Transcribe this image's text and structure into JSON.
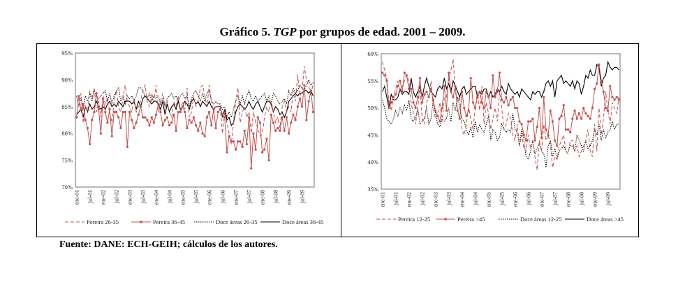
{
  "title": {
    "prefix": "Gráfico 5.",
    "italic": "TGP",
    "suffix": "por grupos de edad. 2001 – 2009."
  },
  "source": "Fuente: DANE: ECH-GEIH; cálculos de los autores.",
  "chart_data": [
    {
      "type": "line",
      "title": "",
      "xlabel": "",
      "ylabel": "",
      "ylim": [
        70,
        95
      ],
      "yticks": [
        "70%",
        "75%",
        "80%",
        "85%",
        "90%",
        "95%"
      ],
      "ytick_values": [
        70,
        75,
        80,
        85,
        90,
        95
      ],
      "xticks": [
        "ene-01",
        "jul-01",
        "ene-02",
        "jul-02",
        "ene-03",
        "jul-03",
        "ene-04",
        "jul-04",
        "ene-05",
        "jul-05",
        "ene-06",
        "jul-06",
        "ene-07",
        "jul-07",
        "ene-08",
        "jul-08",
        "ene-09",
        "jul-09"
      ],
      "x_period": "monthly 2001-01 to 2009-12",
      "legend_position": "bottom",
      "series": [
        {
          "name": "Pereira 26-35",
          "color": "#c0504d",
          "style": "dashed",
          "values": [
            87,
            85,
            87.5,
            82,
            85,
            84,
            88,
            86.5,
            88.5,
            84,
            86,
            83,
            87,
            85.5,
            86.5,
            84,
            82,
            86,
            88,
            85,
            84,
            86.5,
            89,
            86,
            85,
            84,
            86.5,
            84,
            85,
            86,
            88,
            89,
            86,
            85,
            87.5,
            86,
            89,
            84,
            86,
            87.5,
            85,
            86,
            84,
            83,
            86,
            85,
            87,
            84,
            86,
            84.5,
            88.5,
            83,
            84,
            87,
            85,
            86,
            88.5,
            89,
            87,
            85,
            89,
            86,
            84,
            85,
            85,
            85,
            80,
            84,
            82,
            80,
            78,
            82,
            86,
            88.5,
            82,
            84,
            85,
            83,
            84,
            80,
            84,
            82,
            81,
            79.5,
            80,
            83,
            85,
            84,
            86,
            84,
            82,
            83,
            81,
            85,
            86,
            84,
            85,
            84,
            88,
            86,
            91,
            87,
            88,
            92.5,
            90,
            89,
            87,
            89.5
          ]
        },
        {
          "name": "Pereira 36-45",
          "color": "#c0504d",
          "style": "solid-markers",
          "values": [
            83,
            87,
            84.5,
            85.5,
            82.5,
            81,
            78,
            82.5,
            84,
            87.5,
            84.5,
            80,
            86.5,
            84,
            82,
            84.5,
            79.5,
            84,
            84,
            83,
            81,
            84,
            84,
            77.5,
            84,
            82.5,
            81,
            82,
            83.5,
            85,
            83,
            83,
            82.5,
            81.5,
            83,
            82,
            83.5,
            85.5,
            84,
            81.5,
            82.5,
            83,
            81.5,
            82,
            83.5,
            80.5,
            84,
            84,
            85,
            84,
            81,
            82.5,
            82,
            83,
            81.5,
            80.5,
            82,
            80,
            79.5,
            83,
            84,
            81.5,
            84.5,
            81,
            84,
            84.5,
            83.5,
            83,
            76.5,
            79.5,
            78.5,
            78.5,
            77,
            78.5,
            78.5,
            77.5,
            80.5,
            78,
            83,
            73.5,
            80,
            77,
            83,
            82,
            76.5,
            77,
            79,
            75,
            83.5,
            82,
            80.5,
            81,
            80.5,
            83,
            80.5,
            83,
            80,
            82,
            83.5,
            82.5,
            85,
            86.5,
            85,
            89,
            82.5,
            86,
            88,
            84
          ]
        },
        {
          "name": "Doce áreas 26-35",
          "color": "#000000",
          "style": "dotted",
          "values": [
            87,
            85,
            86.5,
            84.5,
            87,
            86,
            87.5,
            86,
            88,
            87,
            86.5,
            87,
            87.5,
            88,
            86,
            87.5,
            85.5,
            87,
            88,
            88.5,
            86,
            87,
            85.5,
            87,
            86.5,
            87,
            86,
            87,
            88.5,
            88.5,
            88,
            87,
            86.5,
            87.5,
            86,
            87,
            86.5,
            87,
            85.5,
            86.5,
            85,
            86.5,
            87,
            87.5,
            86.5,
            87,
            86,
            87,
            87.5,
            86.5,
            87,
            85,
            86.5,
            87.5,
            88,
            87,
            86,
            87.5,
            86,
            87.5,
            88,
            86,
            85.5,
            86,
            85.5,
            85.5,
            84.5,
            85,
            83,
            84,
            83,
            84.5,
            86,
            87,
            85.5,
            87,
            85.5,
            87,
            88,
            86.5,
            86,
            87,
            86,
            86.5,
            87,
            87.5,
            86,
            87,
            85.5,
            87.5,
            87,
            86,
            85.5,
            86,
            86.5,
            85.5,
            88,
            87,
            88.5,
            87.5,
            88,
            89,
            88.5,
            88,
            89,
            90,
            89,
            89.5
          ]
        },
        {
          "name": "Doce áreas 36-45",
          "color": "#000000",
          "style": "solid",
          "values": [
            83.5,
            84,
            84.5,
            83,
            85,
            84,
            85.5,
            84.5,
            85,
            86,
            85,
            84.5,
            85,
            84.5,
            85.5,
            86,
            85,
            85.5,
            85,
            86,
            85.5,
            85,
            86,
            86,
            86,
            85.5,
            86,
            84.5,
            86,
            85,
            86.5,
            87,
            86.5,
            86,
            85.5,
            86,
            86,
            85.5,
            84.5,
            86,
            83.5,
            85.5,
            84,
            85,
            85.5,
            84.5,
            86,
            84.5,
            85,
            86,
            85.5,
            84.5,
            86,
            86.5,
            85.5,
            86,
            85,
            86,
            85.5,
            85,
            86,
            85,
            84.5,
            85,
            85,
            85,
            83,
            84.5,
            82.5,
            83,
            81.5,
            82,
            84,
            85,
            85.5,
            85,
            84.5,
            85,
            86,
            85,
            84.5,
            85.5,
            86,
            85,
            84,
            85,
            86,
            86,
            85.5,
            84,
            85,
            84.5,
            83.5,
            84,
            83,
            84,
            86,
            86.5,
            87,
            87.5,
            87,
            87.5,
            87.5,
            88,
            88,
            87.5,
            88,
            87
          ]
        }
      ]
    },
    {
      "type": "line",
      "title": "",
      "xlabel": "",
      "ylabel": "",
      "ylim": [
        35,
        60
      ],
      "yticks": [
        "35%",
        "40%",
        "45%",
        "50%",
        "55%",
        "60%"
      ],
      "ytick_values": [
        35,
        40,
        45,
        50,
        55,
        60
      ],
      "xticks": [
        "ene-01",
        "jul-01",
        "ene-02",
        "jul-02",
        "ene-03",
        "jul-03",
        "ene-04",
        "jul-04",
        "ene-05",
        "jul-05",
        "ene-06",
        "jul-06",
        "ene-07",
        "jul-07",
        "ene-08",
        "jul-08",
        "ene-09",
        "jul-09"
      ],
      "x_period": "monthly 2001-01 to 2009-12",
      "legend_position": "bottom",
      "series": [
        {
          "name": "Pereira 12-25",
          "color": "#c0504d",
          "style": "dashed",
          "values": [
            58.5,
            57,
            55.5,
            51,
            49.5,
            52,
            53.5,
            55,
            53,
            54,
            55,
            56,
            55,
            51,
            49,
            47,
            50,
            54,
            48,
            47,
            51,
            52,
            55,
            50,
            48,
            49,
            51,
            47.5,
            52,
            52,
            55,
            57,
            59,
            53,
            51,
            52,
            46,
            45,
            47,
            50,
            48,
            46,
            50,
            53,
            49.5,
            54,
            47,
            51,
            49,
            46,
            48,
            50,
            47.5,
            53,
            50,
            46,
            47,
            49,
            48,
            45,
            44,
            47,
            43,
            45,
            42.5,
            42,
            45,
            42.5,
            44,
            41,
            38.5,
            44,
            42,
            47,
            44,
            45,
            43,
            39,
            41,
            40.5,
            43,
            44,
            45,
            42,
            41.5,
            44,
            44,
            42,
            43,
            41,
            42,
            43,
            44,
            46,
            42,
            41,
            47,
            42,
            50,
            45,
            48,
            53,
            49.5,
            47,
            51,
            50,
            49,
            52
          ]
        },
        {
          "name": "Pereira >45",
          "color": "#c0504d",
          "style": "solid-markers",
          "values": [
            56.5,
            56,
            55,
            50,
            51,
            52,
            52.5,
            54,
            55,
            53,
            56.5,
            56,
            53.5,
            53.5,
            51,
            50,
            52,
            55.5,
            51,
            52.5,
            53,
            52,
            53.5,
            51.5,
            49.5,
            48.5,
            47.5,
            50,
            54,
            49.5,
            56.5,
            53,
            52,
            54,
            49.5,
            48,
            53,
            50,
            48.5,
            49.5,
            55.5,
            51,
            50,
            52,
            53,
            51,
            50,
            53,
            52,
            50,
            56,
            52,
            53,
            56.5,
            51.5,
            51,
            52,
            50.5,
            51.5,
            52,
            50,
            50,
            47.5,
            47,
            45,
            44,
            47.5,
            47.5,
            48,
            44,
            46.5,
            50,
            44.5,
            52,
            46,
            45,
            49.5,
            47.5,
            44,
            43,
            48,
            48.5,
            50.5,
            46,
            46,
            45.5,
            48,
            49.5,
            48,
            49,
            48,
            50,
            49,
            48.5,
            48,
            50,
            53.5,
            54.5,
            58,
            55,
            53,
            50,
            49.5,
            54,
            52,
            51.5,
            52,
            51.5
          ]
        },
        {
          "name": "Doce áreas 12-25",
          "color": "#000000",
          "style": "dotted",
          "values": [
            51.5,
            50,
            48,
            47.5,
            47,
            48,
            49.5,
            48.5,
            50,
            49,
            50.5,
            49.5,
            51.5,
            48,
            47.5,
            48,
            50,
            47,
            47.5,
            48,
            50,
            47,
            48,
            51.5,
            49,
            47,
            46.5,
            48,
            47.5,
            48,
            50,
            47.5,
            51,
            49.5,
            52,
            50,
            48,
            47.5,
            46,
            45,
            46.5,
            44.5,
            47.5,
            45.5,
            47,
            46,
            45.5,
            47,
            48.5,
            44,
            46,
            45.5,
            44,
            44.5,
            47,
            46,
            45.5,
            46,
            45.5,
            49,
            46,
            45.5,
            43,
            46,
            44,
            41,
            40.5,
            42,
            44,
            41.5,
            42.5,
            43.5,
            42,
            41.5,
            39,
            43,
            44,
            41,
            42.5,
            40.5,
            42,
            42.5,
            43,
            42,
            42,
            43,
            43,
            42,
            45,
            44,
            43,
            42,
            44,
            42.5,
            43,
            44,
            46,
            45,
            47,
            44,
            46,
            44.5,
            45.5,
            46,
            47.5,
            46,
            47,
            47
          ]
        },
        {
          "name": "Doce áreas >45",
          "color": "#000000",
          "style": "solid",
          "values": [
            53,
            54,
            52,
            50,
            52.5,
            51.5,
            51.5,
            52,
            53.5,
            52.5,
            53,
            53,
            52.5,
            55.5,
            53,
            52,
            53,
            54,
            52,
            54,
            55.5,
            54,
            53,
            52.5,
            52,
            53.5,
            54,
            53.5,
            55.5,
            53.5,
            54.5,
            53,
            55,
            54,
            53,
            52,
            53.5,
            54,
            52.5,
            53,
            53.5,
            54,
            54,
            52,
            53,
            52.5,
            53.5,
            53.5,
            52,
            53,
            52,
            52.5,
            53.5,
            53,
            54,
            53,
            52.5,
            54.5,
            53.5,
            53,
            52.5,
            53,
            52,
            53.5,
            53,
            52.5,
            52,
            51.5,
            53,
            52.5,
            53,
            53,
            52,
            53,
            54.5,
            55,
            54,
            55,
            52,
            55,
            55.5,
            56,
            54.5,
            55,
            54.5,
            54,
            55,
            53.5,
            55,
            54.5,
            52.5,
            54,
            56,
            55.5,
            57,
            56,
            56,
            58,
            57.5,
            54,
            55.5,
            56,
            58.5,
            57.5,
            57,
            57.5,
            57.5,
            57
          ]
        }
      ]
    }
  ]
}
